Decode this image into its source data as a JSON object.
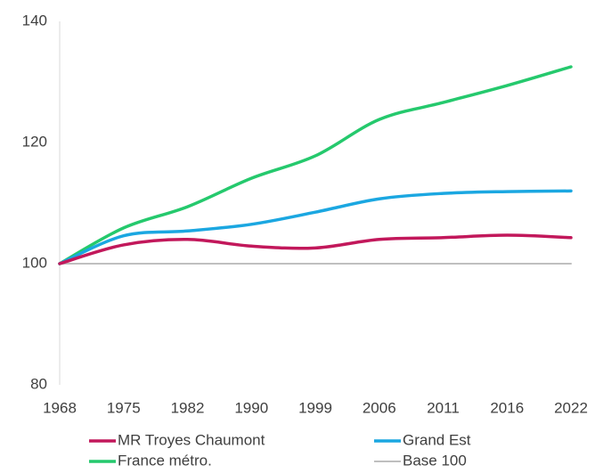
{
  "chart_data": {
    "type": "line",
    "categories": [
      "1968",
      "1975",
      "1982",
      "1990",
      "1999",
      "2006",
      "2011",
      "2016",
      "2022"
    ],
    "series": [
      {
        "name": "MR Troyes Chaumont",
        "color": "#c2185b",
        "values": [
          100,
          103.1,
          104,
          102.9,
          102.6,
          104,
          104.3,
          104.7,
          104.3
        ]
      },
      {
        "name": "Grand Est",
        "color": "#1ba7e1",
        "values": [
          100,
          104.6,
          105.4,
          106.5,
          108.5,
          110.7,
          111.6,
          111.9,
          112
        ]
      },
      {
        "name": "France métro.",
        "color": "#25c96d",
        "values": [
          100,
          105.9,
          109.4,
          114.1,
          117.8,
          123.8,
          126.6,
          129.4,
          132.5
        ]
      },
      {
        "name": "Base 100",
        "color": "#bfbfbf",
        "values": [
          100,
          100,
          100,
          100,
          100,
          100,
          100,
          100,
          100
        ]
      }
    ],
    "ylim": [
      80,
      140
    ],
    "yticks": [
      80,
      100,
      120,
      140
    ],
    "grid": false
  }
}
